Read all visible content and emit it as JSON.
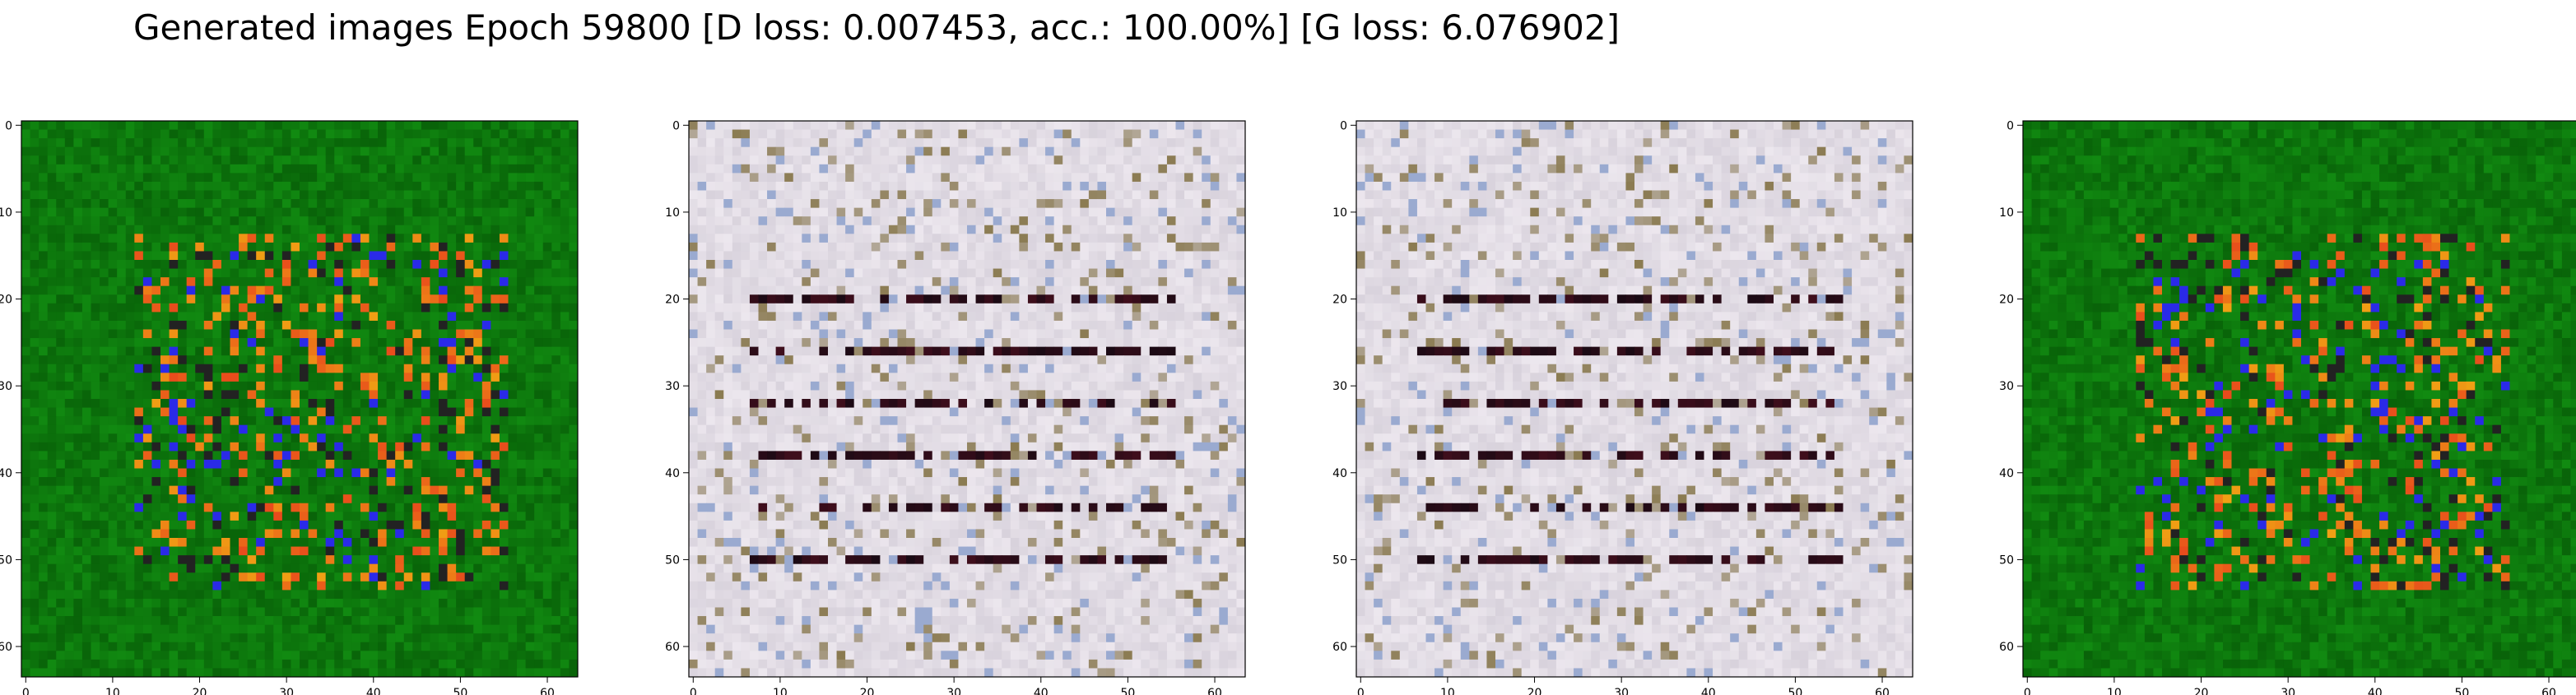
{
  "figure": {
    "title": "Generated images Epoch 59800 [D loss: 0.007453, acc.: 100.00%] [G loss: 6.076902]"
  },
  "panels": [
    {
      "id": "panel-1",
      "description": "generated-sample",
      "colors": {
        "base": "#118a11",
        "accent": "#e84a1c",
        "shadow": "#222222",
        "blue": "#2a2ae8"
      },
      "x_ticks": [
        0,
        10,
        20,
        30,
        40,
        50,
        60
      ],
      "y_ticks": [
        0,
        10,
        20,
        30,
        40,
        50,
        60
      ]
    },
    {
      "id": "panel-2",
      "description": "generated-sample",
      "colors": {
        "base": "#d8d2dc",
        "accent": "#1a0a14",
        "shadow": "#8a7a50",
        "blue": "#9aaad0"
      },
      "x_ticks": [
        0,
        10,
        20,
        30,
        40,
        50,
        60
      ],
      "y_ticks": [
        0,
        10,
        20,
        30,
        40,
        50,
        60
      ]
    },
    {
      "id": "panel-3",
      "description": "generated-sample",
      "colors": {
        "base": "#d8d2dc",
        "accent": "#1a0a14",
        "shadow": "#8a7a50",
        "blue": "#9aaad0"
      },
      "x_ticks": [
        0,
        10,
        20,
        30,
        40,
        50,
        60
      ],
      "y_ticks": [
        0,
        10,
        20,
        30,
        40,
        50,
        60
      ]
    },
    {
      "id": "panel-4",
      "description": "generated-sample",
      "colors": {
        "base": "#118a11",
        "accent": "#e84a1c",
        "shadow": "#222222",
        "blue": "#2a2ae8"
      },
      "x_ticks": [
        0,
        10,
        20,
        30,
        40,
        50,
        60
      ],
      "y_ticks": [
        0,
        10,
        20,
        30,
        40,
        50,
        60
      ]
    }
  ]
}
